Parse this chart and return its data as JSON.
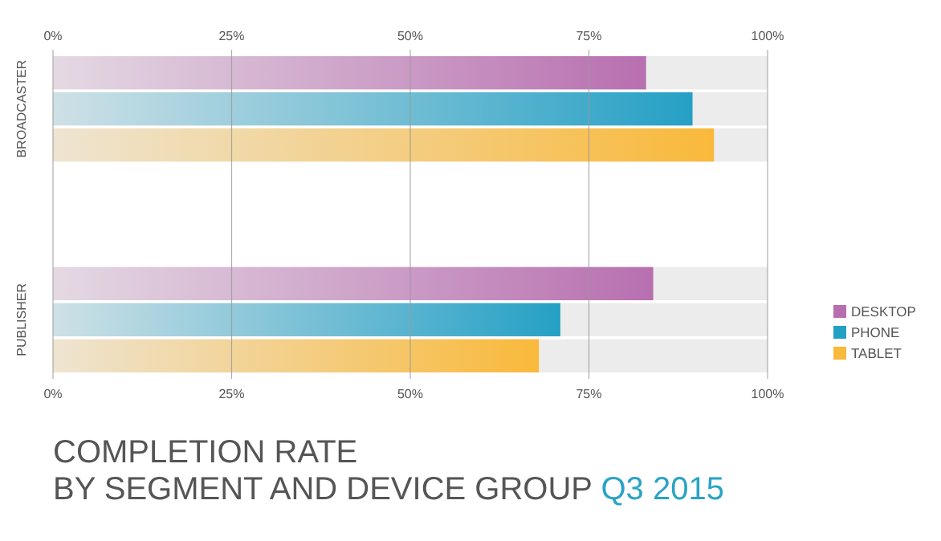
{
  "chart_data": {
    "type": "bar",
    "orientation": "horizontal",
    "title": "COMPLETION RATE\nBY SEGMENT AND DEVICE GROUP",
    "subtitle": "Q3 2015",
    "categories": [
      "BROADCASTER",
      "PUBLISHER"
    ],
    "series": [
      {
        "name": "DESKTOP",
        "color": "#b86fb0",
        "values": [
          83,
          84
        ]
      },
      {
        "name": "PHONE",
        "color": "#25a0c5",
        "values": [
          89.5,
          71
        ]
      },
      {
        "name": "TABLET",
        "color": "#f9b93b",
        "values": [
          92.5,
          68
        ]
      }
    ],
    "xlim": [
      0,
      100
    ],
    "xticks": [
      {
        "value": 0,
        "label": "0%"
      },
      {
        "value": 25,
        "label": "25%"
      },
      {
        "value": 50,
        "label": "50%"
      },
      {
        "value": 75,
        "label": "75%"
      },
      {
        "value": 100,
        "label": "100%"
      }
    ],
    "x2lim": [
      0,
      100
    ],
    "x2ticks": [
      {
        "value": 0,
        "label": "0%"
      },
      {
        "value": 25,
        "label": "25%"
      },
      {
        "value": 50,
        "label": "50%"
      },
      {
        "value": 75,
        "label": "75%"
      },
      {
        "value": 100,
        "label": "100%"
      }
    ],
    "grid": "x",
    "legend": "bottom right"
  }
}
